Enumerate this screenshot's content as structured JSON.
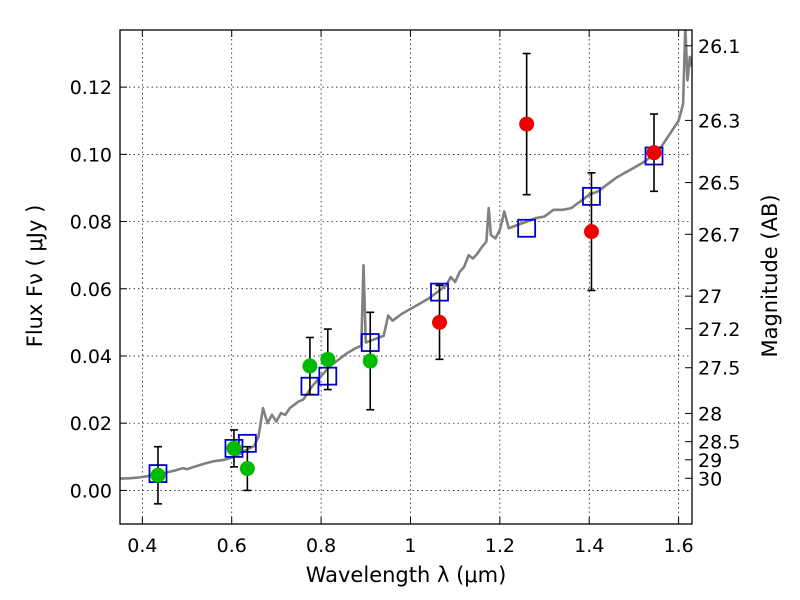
{
  "chart_data": {
    "type": "scatter",
    "xlabel": "Wavelength  λ (μm)",
    "ylabel": "Flux  Fν  ( μJy )",
    "y2label": "Magnitude (AB)",
    "xlim": [
      0.35,
      1.63
    ],
    "ylim": [
      -0.01,
      0.137
    ],
    "x_ticks": [
      0.4,
      0.6,
      0.8,
      1.0,
      1.2,
      1.4,
      1.6
    ],
    "x_tick_labels": [
      "0.4",
      "0.6",
      "0.8",
      "1",
      "1.2",
      "1.4",
      "1.6"
    ],
    "y_ticks": [
      0.0,
      0.02,
      0.04,
      0.06,
      0.08,
      0.1,
      0.12
    ],
    "y_tick_labels": [
      "0.00",
      "0.02",
      "0.04",
      "0.06",
      "0.08",
      "0.10",
      "0.12"
    ],
    "y2_ticks": [
      {
        "label": "26.1",
        "flux": 0.1323
      },
      {
        "label": "26.3",
        "flux": 0.1101
      },
      {
        "label": "26.5",
        "flux": 0.0916
      },
      {
        "label": "26.7",
        "flux": 0.0762
      },
      {
        "label": "27",
        "flux": 0.0578
      },
      {
        "label": "27.2",
        "flux": 0.0481
      },
      {
        "label": "27.5",
        "flux": 0.0365
      },
      {
        "label": "28",
        "flux": 0.0229
      },
      {
        "label": "28.5",
        "flux": 0.0145
      },
      {
        "label": "29",
        "flux": 0.0091
      },
      {
        "label": "30",
        "flux": 0.0036
      }
    ],
    "grid": true,
    "series": [
      {
        "kind": "line",
        "color": "#808080",
        "points": [
          [
            0.35,
            0.0035
          ],
          [
            0.37,
            0.0036
          ],
          [
            0.39,
            0.0038
          ],
          [
            0.41,
            0.0042
          ],
          [
            0.43,
            0.0047
          ],
          [
            0.45,
            0.0052
          ],
          [
            0.47,
            0.0058
          ],
          [
            0.49,
            0.0066
          ],
          [
            0.5,
            0.0063
          ],
          [
            0.52,
            0.0072
          ],
          [
            0.54,
            0.008
          ],
          [
            0.56,
            0.0087
          ],
          [
            0.58,
            0.009
          ],
          [
            0.6,
            0.0097
          ],
          [
            0.62,
            0.011
          ],
          [
            0.63,
            0.0118
          ],
          [
            0.64,
            0.0125
          ],
          [
            0.65,
            0.0132
          ],
          [
            0.66,
            0.016
          ],
          [
            0.67,
            0.0245
          ],
          [
            0.68,
            0.02
          ],
          [
            0.69,
            0.0225
          ],
          [
            0.7,
            0.0205
          ],
          [
            0.71,
            0.023
          ],
          [
            0.72,
            0.0225
          ],
          [
            0.73,
            0.0245
          ],
          [
            0.74,
            0.0255
          ],
          [
            0.75,
            0.0265
          ],
          [
            0.76,
            0.027
          ],
          [
            0.78,
            0.031
          ],
          [
            0.8,
            0.034
          ],
          [
            0.82,
            0.037
          ],
          [
            0.84,
            0.039
          ],
          [
            0.86,
            0.041
          ],
          [
            0.88,
            0.0425
          ],
          [
            0.89,
            0.043
          ],
          [
            0.895,
            0.067
          ],
          [
            0.9,
            0.044
          ],
          [
            0.92,
            0.045
          ],
          [
            0.94,
            0.046
          ],
          [
            0.95,
            0.052
          ],
          [
            0.96,
            0.0505
          ],
          [
            0.98,
            0.0525
          ],
          [
            1.0,
            0.054
          ],
          [
            1.02,
            0.0555
          ],
          [
            1.04,
            0.057
          ],
          [
            1.06,
            0.059
          ],
          [
            1.08,
            0.061
          ],
          [
            1.09,
            0.0635
          ],
          [
            1.1,
            0.062
          ],
          [
            1.11,
            0.065
          ],
          [
            1.12,
            0.0665
          ],
          [
            1.13,
            0.07
          ],
          [
            1.14,
            0.069
          ],
          [
            1.15,
            0.0705
          ],
          [
            1.16,
            0.0725
          ],
          [
            1.17,
            0.074
          ],
          [
            1.175,
            0.084
          ],
          [
            1.18,
            0.076
          ],
          [
            1.19,
            0.075
          ],
          [
            1.2,
            0.0775
          ],
          [
            1.21,
            0.083
          ],
          [
            1.22,
            0.078
          ],
          [
            1.24,
            0.079
          ],
          [
            1.26,
            0.08
          ],
          [
            1.28,
            0.081
          ],
          [
            1.3,
            0.0815
          ],
          [
            1.32,
            0.0835
          ],
          [
            1.34,
            0.0835
          ],
          [
            1.36,
            0.084
          ],
          [
            1.38,
            0.086
          ],
          [
            1.4,
            0.088
          ],
          [
            1.42,
            0.089
          ],
          [
            1.44,
            0.091
          ],
          [
            1.46,
            0.093
          ],
          [
            1.48,
            0.0945
          ],
          [
            1.5,
            0.096
          ],
          [
            1.52,
            0.0975
          ],
          [
            1.54,
            0.0995
          ],
          [
            1.56,
            0.102
          ],
          [
            1.58,
            0.106
          ],
          [
            1.6,
            0.11
          ],
          [
            1.61,
            0.115
          ],
          [
            1.615,
            0.138
          ],
          [
            1.62,
            0.122
          ],
          [
            1.625,
            0.129
          ],
          [
            1.63,
            0.126
          ]
        ]
      },
      {
        "kind": "model-squares",
        "color": "#0000cc",
        "points": [
          [
            0.435,
            0.005
          ],
          [
            0.605,
            0.0125
          ],
          [
            0.635,
            0.014
          ],
          [
            0.775,
            0.031
          ],
          [
            0.815,
            0.034
          ],
          [
            0.91,
            0.044
          ],
          [
            1.065,
            0.059
          ],
          [
            1.26,
            0.078
          ],
          [
            1.405,
            0.0875
          ],
          [
            1.545,
            0.0995
          ]
        ]
      },
      {
        "kind": "points",
        "color": "#00bb00",
        "points": [
          {
            "x": 0.435,
            "y": 0.0045,
            "err": 0.0085
          },
          {
            "x": 0.605,
            "y": 0.0125,
            "err": 0.0055
          },
          {
            "x": 0.635,
            "y": 0.0065,
            "err": 0.0065
          },
          {
            "x": 0.775,
            "y": 0.037,
            "err": 0.0085
          },
          {
            "x": 0.815,
            "y": 0.039,
            "err": 0.009
          },
          {
            "x": 0.91,
            "y": 0.0385,
            "err": 0.0145
          }
        ]
      },
      {
        "kind": "points",
        "color": "#ee0000",
        "points": [
          {
            "x": 1.065,
            "y": 0.05,
            "err": 0.011
          },
          {
            "x": 1.26,
            "y": 0.109,
            "err": 0.021
          },
          {
            "x": 1.405,
            "y": 0.077,
            "err": 0.0175
          },
          {
            "x": 1.545,
            "y": 0.1005,
            "err": 0.0115
          }
        ]
      }
    ]
  }
}
